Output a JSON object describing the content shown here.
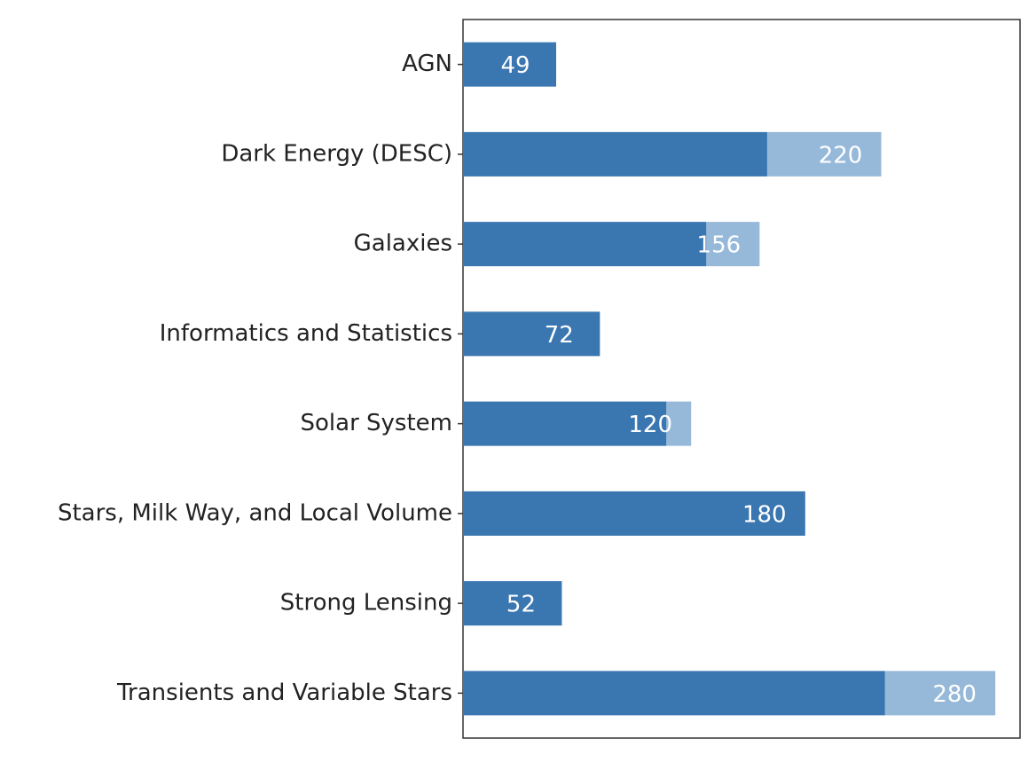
{
  "chart_data": {
    "type": "stacked_barh",
    "categories": [
      "AGN",
      "Dark Energy (DESC)",
      "Galaxies",
      "Informatics and Statistics",
      "Solar System",
      "Stars, Milk Way, and Local Volume",
      "Strong Lensing",
      "Transients and Variable Stars"
    ],
    "series": [
      {
        "color": "#3a76b0",
        "values": [
          49,
          160,
          128,
          72,
          107,
          180,
          52,
          222
        ]
      },
      {
        "color": "#97b9d9",
        "values": [
          0,
          60,
          28,
          0,
          13,
          0,
          0,
          58
        ]
      }
    ],
    "totals": [
      49,
      220,
      156,
      72,
      120,
      180,
      52,
      280
    ],
    "xlim": [
      0,
      293
    ]
  }
}
